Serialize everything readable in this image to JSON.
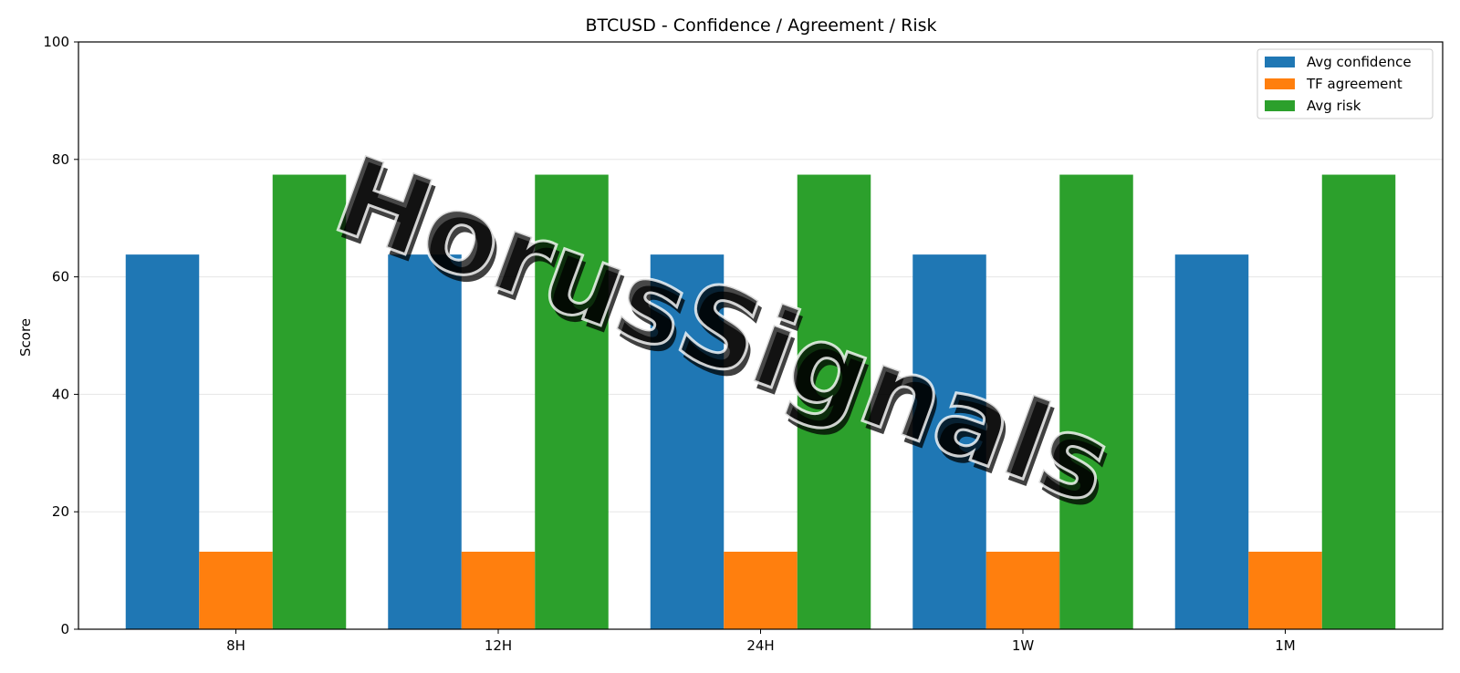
{
  "chart_data": {
    "type": "bar",
    "title": "BTCUSD - Confidence / Agreement / Risk",
    "xlabel": "",
    "ylabel": "Score",
    "ylim": [
      0,
      100
    ],
    "yticks": [
      0,
      20,
      40,
      60,
      80,
      100
    ],
    "grid": "horizontal",
    "legend_position": "top-right",
    "categories": [
      "8H",
      "12H",
      "24H",
      "1W",
      "1M"
    ],
    "series": [
      {
        "name": "Avg confidence",
        "color": "#1f77b4",
        "values": [
          63.8,
          63.8,
          63.8,
          63.8,
          63.8
        ]
      },
      {
        "name": "TF agreement",
        "color": "#ff7f0e",
        "values": [
          13.2,
          13.2,
          13.2,
          13.2,
          13.2
        ]
      },
      {
        "name": "Avg risk",
        "color": "#2ca02c",
        "values": [
          77.4,
          77.4,
          77.4,
          77.4,
          77.4
        ]
      }
    ]
  },
  "watermark": {
    "text": "HorusSignals",
    "color": "#4a8fc9"
  }
}
